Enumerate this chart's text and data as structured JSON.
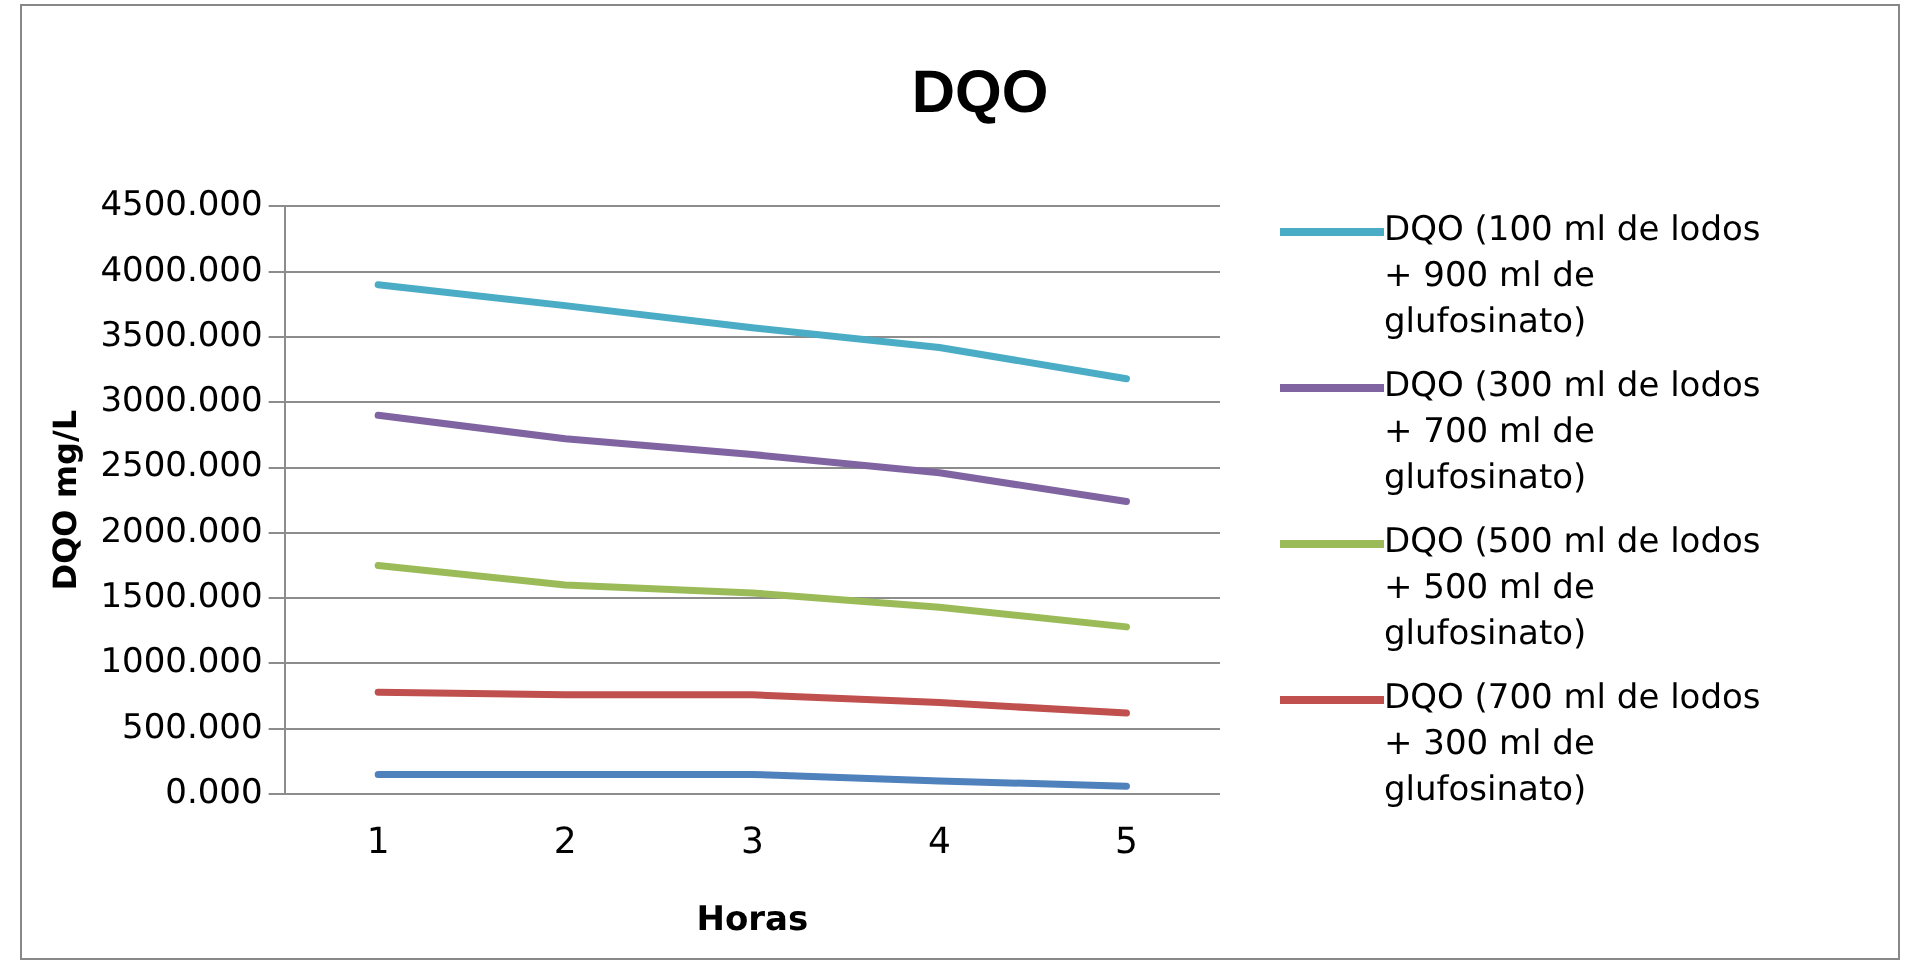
{
  "chart_data": {
    "type": "line",
    "title": "DQO",
    "xlabel": "Horas",
    "ylabel": "DQO mg/L",
    "categories": [
      "1",
      "2",
      "3",
      "4",
      "5"
    ],
    "series": [
      {
        "name": "DQO (100 ml de lodos + 900 ml de glufosinato)",
        "color": "#4bacc6",
        "values": [
          3900,
          3740,
          3570,
          3420,
          3180
        ]
      },
      {
        "name": "DQO (300 ml de lodos + 700 ml de glufosinato)",
        "color": "#8064a2",
        "values": [
          2900,
          2720,
          2600,
          2460,
          2240
        ]
      },
      {
        "name": "DQO (500 ml de lodos + 500 ml de glufosinato)",
        "color": "#9bbb59",
        "values": [
          1750,
          1600,
          1540,
          1430,
          1280
        ]
      },
      {
        "name": "DQO (700 ml de lodos + 300 ml de glufosinato)",
        "color": "#c0504d",
        "values": [
          780,
          760,
          760,
          700,
          620
        ]
      },
      {
        "color": "#4f81bd",
        "values": [
          150,
          150,
          150,
          100,
          60
        ]
      }
    ],
    "ylim": [
      0,
      4500
    ],
    "yticks": [
      {
        "value": 0,
        "label": "0.000"
      },
      {
        "value": 500,
        "label": "500.000"
      },
      {
        "value": 1000,
        "label": "1000.000"
      },
      {
        "value": 1500,
        "label": "1500.000"
      },
      {
        "value": 2000,
        "label": "2000.000"
      },
      {
        "value": 2500,
        "label": "2500.000"
      },
      {
        "value": 3000,
        "label": "3000.000"
      },
      {
        "value": 3500,
        "label": "3500.000"
      },
      {
        "value": 4000,
        "label": "4000.000"
      },
      {
        "value": 4500,
        "label": "4500.000"
      }
    ],
    "grid": "y",
    "legend": "right",
    "marker": "none",
    "line_style": "solid"
  }
}
